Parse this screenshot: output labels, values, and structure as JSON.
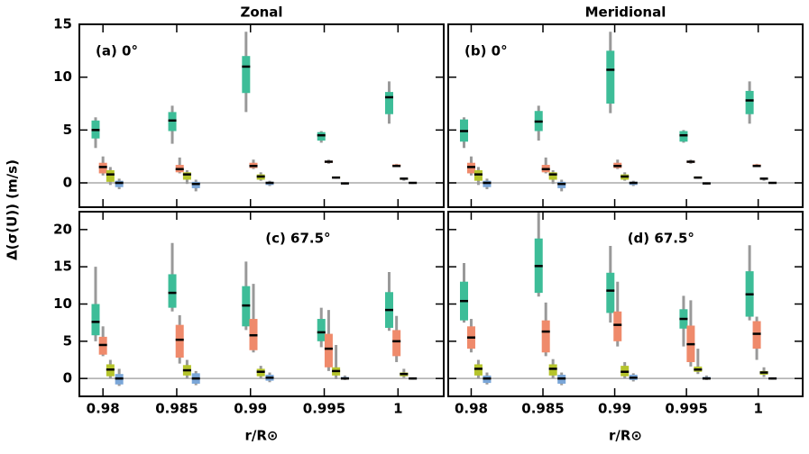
{
  "chart_data": [
    {
      "type": "box",
      "title": "Zonal",
      "annotation": "(a) 0°",
      "annotation_loc": "upper left",
      "ylabel": "Δ(σ(U)) (m/s)",
      "xlim": [
        0.9784,
        1.0031
      ],
      "xticks": [
        0.98,
        0.985,
        0.99,
        0.995,
        1
      ],
      "show_xtick_labels": false,
      "ylim": [
        -2.3,
        15
      ],
      "yticks": [
        0,
        5,
        10,
        15
      ],
      "show_ytick_labels": true,
      "hline": 0,
      "whisker_color": "#999999",
      "series": [
        {
          "color": "#3dbd98",
          "x": [
            0.9795,
            0.9847,
            0.9897,
            0.9948,
            0.9994
          ],
          "whislo": [
            3.3,
            3.7,
            6.7,
            3.8,
            5.6
          ],
          "q1": [
            4.2,
            4.9,
            8.5,
            4.0,
            6.5
          ],
          "med": [
            5,
            5.9,
            11,
            4.5,
            8.1
          ],
          "q3": [
            5.9,
            6.7,
            12,
            4.8,
            8.6
          ],
          "whishi": [
            6.2,
            7.3,
            14.3,
            4.9,
            9.6
          ]
        },
        {
          "color": "#ef8a6b",
          "x": [
            0.98,
            0.9852,
            0.9902,
            0.9953,
            0.9999
          ],
          "whislo": [
            0.7,
            0.9,
            1.3,
            1.8,
            1.5
          ],
          "q1": [
            0.9,
            1.0,
            1.4,
            1.9,
            1.55
          ],
          "med": [
            1.5,
            1.3,
            1.6,
            2.0,
            1.6
          ],
          "q3": [
            1.9,
            1.7,
            1.9,
            2.1,
            1.75
          ],
          "whishi": [
            2.5,
            2.4,
            2.2,
            2.2,
            1.8
          ]
        },
        {
          "color": "#b5c42b",
          "x": [
            0.9805,
            0.9857,
            0.9907,
            0.9958,
            1.0004
          ],
          "whislo": [
            -0.2,
            -0.1,
            0.2,
            0.4,
            0.2
          ],
          "q1": [
            0.1,
            0.3,
            0.3,
            0.45,
            0.3
          ],
          "med": [
            0.8,
            0.8,
            0.6,
            0.5,
            0.4
          ],
          "q3": [
            1.2,
            1.0,
            0.8,
            0.6,
            0.45
          ],
          "whishi": [
            1.5,
            1.2,
            1.0,
            0.6,
            0.5
          ]
        },
        {
          "color": "#7aa6d8",
          "x": [
            0.9811,
            0.9863,
            0.9913,
            0.9964,
            1.001
          ],
          "whislo": [
            -0.6,
            -0.8,
            -0.3,
            -0.15,
            -0.1
          ],
          "q1": [
            -0.4,
            -0.5,
            -0.2,
            -0.1,
            -0.05
          ],
          "med": [
            0,
            -0.1,
            0,
            -0.05,
            0
          ],
          "q3": [
            0.2,
            0.1,
            0.1,
            0,
            0.03
          ],
          "whishi": [
            0.4,
            0.3,
            0.2,
            0.05,
            0.05
          ]
        }
      ]
    },
    {
      "type": "box",
      "title": "Meridional",
      "annotation": "(b) 0°",
      "annotation_loc": "upper left",
      "xlim": [
        0.9784,
        1.0031
      ],
      "xticks": [
        0.98,
        0.985,
        0.99,
        0.995,
        1
      ],
      "show_xtick_labels": false,
      "ylim": [
        -2.3,
        15
      ],
      "yticks": [
        0,
        5,
        10,
        15
      ],
      "show_ytick_labels": false,
      "hline": 0,
      "whisker_color": "#999999",
      "series": [
        {
          "color": "#3dbd98",
          "x": [
            0.9795,
            0.9847,
            0.9897,
            0.9948,
            0.9994
          ],
          "whislo": [
            3.3,
            4.0,
            6.6,
            3.8,
            5.6
          ],
          "q1": [
            3.9,
            4.9,
            7.5,
            3.9,
            6.5
          ],
          "med": [
            4.9,
            5.8,
            10.7,
            4.5,
            7.8
          ],
          "q3": [
            6.0,
            6.8,
            12.5,
            4.9,
            8.7
          ],
          "whishi": [
            6.2,
            7.3,
            14.3,
            5.0,
            9.6
          ]
        },
        {
          "color": "#ef8a6b",
          "x": [
            0.98,
            0.9852,
            0.9902,
            0.9953,
            0.9999
          ],
          "whislo": [
            0.7,
            0.9,
            1.3,
            1.8,
            1.5
          ],
          "q1": [
            0.9,
            1.0,
            1.4,
            1.9,
            1.55
          ],
          "med": [
            1.5,
            1.3,
            1.6,
            2.0,
            1.6
          ],
          "q3": [
            1.9,
            1.7,
            1.9,
            2.1,
            1.75
          ],
          "whishi": [
            2.5,
            2.4,
            2.2,
            2.2,
            1.8
          ]
        },
        {
          "color": "#b5c42b",
          "x": [
            0.9805,
            0.9857,
            0.9907,
            0.9958,
            1.0004
          ],
          "whislo": [
            -0.2,
            -0.1,
            0.2,
            0.4,
            0.2
          ],
          "q1": [
            0.2,
            0.3,
            0.3,
            0.45,
            0.3
          ],
          "med": [
            0.8,
            0.8,
            0.6,
            0.5,
            0.4
          ],
          "q3": [
            1.2,
            1.0,
            0.8,
            0.6,
            0.45
          ],
          "whishi": [
            1.5,
            1.2,
            1.0,
            0.6,
            0.5
          ]
        },
        {
          "color": "#7aa6d8",
          "x": [
            0.9811,
            0.9863,
            0.9913,
            0.9964,
            1.001
          ],
          "whislo": [
            -0.6,
            -0.8,
            -0.3,
            -0.15,
            -0.1
          ],
          "q1": [
            -0.4,
            -0.5,
            -0.2,
            -0.1,
            -0.05
          ],
          "med": [
            0,
            -0.1,
            0,
            -0.05,
            0
          ],
          "q3": [
            0.2,
            0.1,
            0.1,
            0,
            0.03
          ],
          "whishi": [
            0.4,
            0.3,
            0.2,
            0.05,
            0.05
          ]
        }
      ]
    },
    {
      "type": "box",
      "annotation": "(c) 67.5°",
      "annotation_loc": "upper center",
      "xlabel": "r/R⊙",
      "xlim": [
        0.9784,
        1.0031
      ],
      "xticks": [
        0.98,
        0.985,
        0.99,
        0.995,
        1
      ],
      "show_xtick_labels": true,
      "ylim": [
        -2.4,
        22.4
      ],
      "yticks": [
        0,
        5,
        10,
        15,
        20
      ],
      "show_ytick_labels": true,
      "hline": 0,
      "whisker_color": "#999999",
      "series": [
        {
          "color": "#3dbd98",
          "x": [
            0.9795,
            0.9847,
            0.9897,
            0.9948,
            0.9994
          ],
          "whislo": [
            5.0,
            9.0,
            6.5,
            4.2,
            6.4
          ],
          "q1": [
            5.8,
            9.5,
            7.0,
            5.0,
            6.8
          ],
          "med": [
            7.6,
            11.5,
            9.8,
            6.2,
            9.2
          ],
          "q3": [
            10,
            14,
            12.4,
            8,
            11.6
          ],
          "whishi": [
            15,
            18.2,
            15.7,
            9.5,
            14.3
          ]
        },
        {
          "color": "#ef8a6b",
          "x": [
            0.98,
            0.9852,
            0.9902,
            0.9953,
            0.9999
          ],
          "whislo": [
            3.0,
            2.0,
            3.5,
            1.0,
            2.2
          ],
          "q1": [
            3.2,
            2.8,
            3.8,
            1.5,
            3.0
          ],
          "med": [
            4.5,
            5.2,
            5.8,
            4.0,
            5.0
          ],
          "q3": [
            5.6,
            7.2,
            8.0,
            6.0,
            6.5
          ],
          "whishi": [
            7.0,
            8.5,
            12.7,
            9.2,
            8.4
          ]
        },
        {
          "color": "#b5c42b",
          "x": [
            0.9805,
            0.9857,
            0.9907,
            0.9958,
            1.0004
          ],
          "whislo": [
            0,
            0,
            0,
            -0.1,
            0.1
          ],
          "q1": [
            0.3,
            0.4,
            0.3,
            0.4,
            0.3
          ],
          "med": [
            1.2,
            1.1,
            0.9,
            1.0,
            0.6
          ],
          "q3": [
            1.9,
            1.8,
            1.3,
            1.5,
            0.8
          ],
          "whishi": [
            2.5,
            2.5,
            1.7,
            4.5,
            1.3
          ]
        },
        {
          "color": "#7aa6d8",
          "x": [
            0.9811,
            0.9863,
            0.9913,
            0.9964,
            1.001
          ],
          "whislo": [
            -1.0,
            -0.9,
            -0.5,
            -0.2,
            -0.15
          ],
          "q1": [
            -0.8,
            -0.7,
            -0.3,
            -0.1,
            -0.1
          ],
          "med": [
            0,
            0,
            0.1,
            0,
            0
          ],
          "q3": [
            0.6,
            0.7,
            0.5,
            0.2,
            0.1
          ],
          "whishi": [
            1.3,
            1.0,
            0.8,
            0.4,
            0.15
          ]
        }
      ]
    },
    {
      "type": "box",
      "annotation": "(d) 67.5°",
      "annotation_loc": "upper center",
      "xlabel": "r/R⊙",
      "xlim": [
        0.9784,
        1.0031
      ],
      "xticks": [
        0.98,
        0.985,
        0.99,
        0.995,
        1
      ],
      "show_xtick_labels": true,
      "ylim": [
        -2.4,
        22.4
      ],
      "yticks": [
        0,
        5,
        10,
        15,
        20
      ],
      "show_ytick_labels": false,
      "hline": 0,
      "whisker_color": "#999999",
      "series": [
        {
          "color": "#3dbd98",
          "x": [
            0.9795,
            0.9847,
            0.9897,
            0.9948,
            0.9994
          ],
          "whislo": [
            7.5,
            11,
            7.5,
            4.3,
            7.8
          ],
          "q1": [
            7.8,
            11.5,
            8.8,
            6.7,
            8.3
          ],
          "med": [
            10.4,
            15.1,
            11.8,
            8,
            11.3
          ],
          "q3": [
            13,
            18.8,
            14.2,
            9.3,
            14.4
          ],
          "whishi": [
            15.5,
            23,
            17.8,
            11.1,
            17.9
          ]
        },
        {
          "color": "#ef8a6b",
          "x": [
            0.98,
            0.9852,
            0.9902,
            0.9953,
            0.9999
          ],
          "whislo": [
            3.5,
            3.0,
            4.3,
            1.6,
            2.5
          ],
          "q1": [
            4.0,
            3.5,
            5.0,
            2.2,
            4.0
          ],
          "med": [
            5.5,
            6.3,
            7.2,
            4.6,
            6.0
          ],
          "q3": [
            7.0,
            7.8,
            9.0,
            7.1,
            7.7
          ],
          "whishi": [
            8.0,
            10.2,
            13.0,
            10.5,
            8.3
          ]
        },
        {
          "color": "#b5c42b",
          "x": [
            0.9805,
            0.9857,
            0.9907,
            0.9958,
            1.0004
          ],
          "whislo": [
            0,
            0,
            0,
            0.6,
            0.2
          ],
          "q1": [
            0.4,
            0.4,
            0.3,
            0.9,
            0.5
          ],
          "med": [
            1.3,
            1.3,
            0.9,
            1.2,
            0.8
          ],
          "q3": [
            1.9,
            1.9,
            1.7,
            1.6,
            1.0
          ],
          "whishi": [
            2.5,
            2.6,
            2.2,
            4.0,
            1.5
          ]
        },
        {
          "color": "#7aa6d8",
          "x": [
            0.9811,
            0.9863,
            0.9913,
            0.9964,
            1.001
          ],
          "whislo": [
            -0.8,
            -0.9,
            -0.4,
            -0.2,
            -0.15
          ],
          "q1": [
            -0.6,
            -0.7,
            -0.2,
            -0.1,
            -0.1
          ],
          "med": [
            0,
            0,
            0.1,
            0,
            0
          ],
          "q3": [
            0.4,
            0.5,
            0.5,
            0.2,
            0.1
          ],
          "whishi": [
            0.8,
            0.8,
            0.7,
            0.4,
            0.15
          ]
        }
      ]
    }
  ]
}
